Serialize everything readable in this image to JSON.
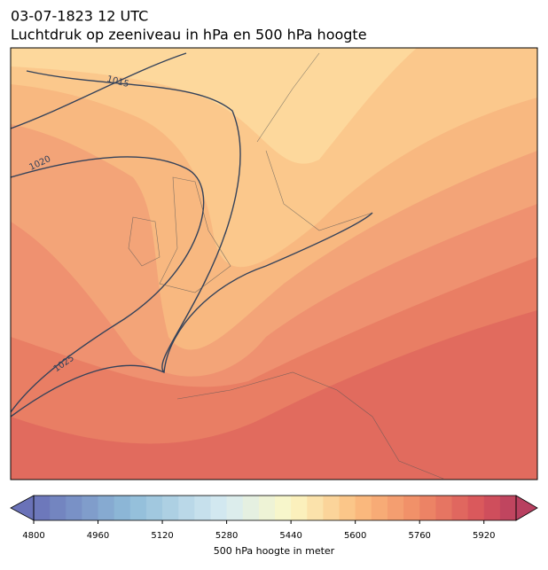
{
  "header": {
    "title": "03-07-1823 12 UTC",
    "subtitle": "Luchtdruk op zeeniveau in hPa en 500 hPa hoogte"
  },
  "map": {
    "contour_labels": [
      "1015",
      "1020",
      "1025"
    ]
  },
  "colorbar": {
    "range": [
      4800,
      6000
    ],
    "step": 40,
    "ticks": [
      4800,
      4960,
      5120,
      5280,
      5440,
      5600,
      5760,
      5920
    ],
    "label": "500 hPa hoogte in meter",
    "stops": [
      [
        4800,
        "#6a72b8"
      ],
      [
        5040,
        "#8fbcd9"
      ],
      [
        5280,
        "#d8ecf2"
      ],
      [
        5440,
        "#fbf7c5"
      ],
      [
        5600,
        "#fbbf80"
      ],
      [
        5760,
        "#ef8a66"
      ],
      [
        5920,
        "#d7525b"
      ],
      [
        6000,
        "#b84060"
      ]
    ]
  }
}
